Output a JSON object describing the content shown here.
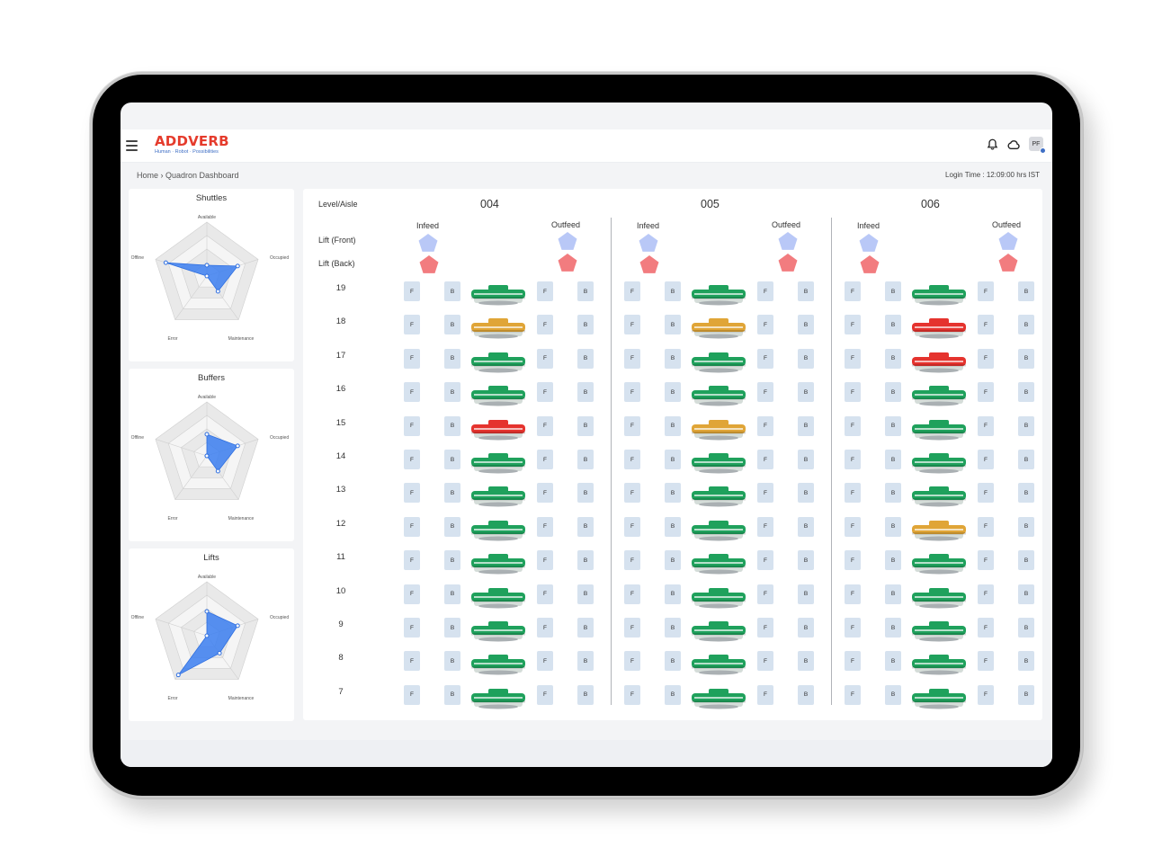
{
  "header": {
    "logo": "ADDVERB",
    "tagline": "Human · Robot · Possibilities",
    "avatar_initials": "PF"
  },
  "breadcrumb": "Home › Quadron Dashboard",
  "login_time": "Login Time : 12:09:00 hrs IST",
  "charts": [
    {
      "title": "Shuttles",
      "axes": [
        "Available",
        "Occupied",
        "Maintenance",
        "Error",
        "Offline"
      ],
      "values": [
        0.2,
        0.6,
        0.35,
        0.0,
        0.8
      ]
    },
    {
      "title": "Buffers",
      "axes": [
        "Available",
        "Occupied",
        "Maintenance",
        "Error",
        "Offline"
      ],
      "values": [
        0.4,
        0.6,
        0.35,
        0.0,
        0.0
      ]
    },
    {
      "title": "Lifts",
      "axes": [
        "Available",
        "Occupied",
        "Maintenance",
        "Error",
        "Offline"
      ],
      "values": [
        0.45,
        0.6,
        0.4,
        0.9,
        0.0
      ]
    }
  ],
  "grid": {
    "level_aisle_label": "Level/Aisle",
    "lift_front_label": "Lift (Front)",
    "lift_back_label": "Lift (Back)",
    "infeed_label": "Infeed",
    "outfeed_label": "Outfeed",
    "slot_f": "F",
    "slot_b": "B",
    "aisles": [
      "004",
      "005",
      "006"
    ],
    "levels": [
      "19",
      "18",
      "17",
      "16",
      "15",
      "14",
      "13",
      "12",
      "11",
      "10",
      "9",
      "8",
      "7"
    ],
    "shuttle_status": [
      [
        "green",
        "green",
        "green"
      ],
      [
        "orange",
        "orange",
        "red"
      ],
      [
        "green",
        "green",
        "red"
      ],
      [
        "green",
        "green",
        "green"
      ],
      [
        "red",
        "orange",
        "green"
      ],
      [
        "green",
        "green",
        "green"
      ],
      [
        "green",
        "green",
        "green"
      ],
      [
        "green",
        "green",
        "orange"
      ],
      [
        "green",
        "green",
        "green"
      ],
      [
        "green",
        "green",
        "green"
      ],
      [
        "green",
        "green",
        "green"
      ],
      [
        "green",
        "green",
        "green"
      ],
      [
        "green",
        "green",
        "green"
      ]
    ]
  },
  "colors": {
    "green": "#1fa15c",
    "orange": "#e0a537",
    "red": "#e5332e",
    "lift_front": "#b9c8f7",
    "lift_back": "#f27c7f",
    "radar_fill": "#3b7ef0",
    "brand_red": "#e53b2c"
  },
  "icons": [
    "menu-icon",
    "bell-icon",
    "cloud-icon"
  ]
}
